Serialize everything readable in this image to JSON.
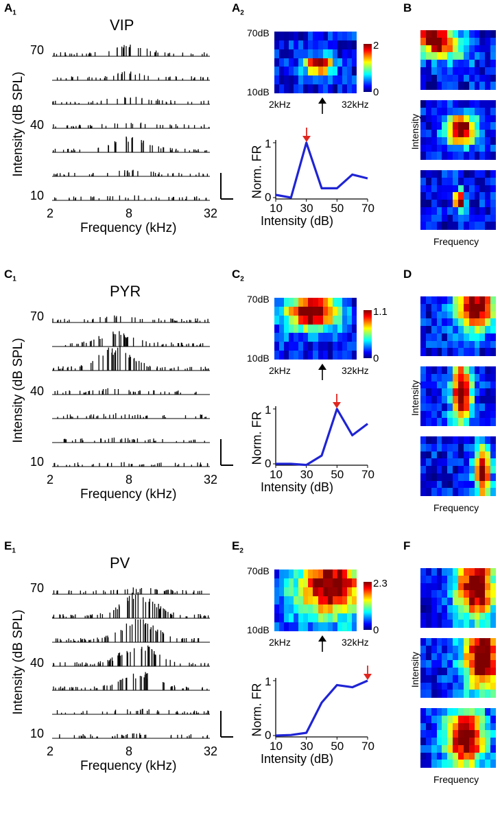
{
  "colors": {
    "line": "#1f24d4",
    "red_arrow": "#e0251f",
    "black_arrow": "#000000"
  },
  "rows": [
    {
      "key": "A",
      "panel1": "A",
      "panel1_sub": "1",
      "panel2": "A",
      "panel2_sub": "2",
      "panel3": "B",
      "title": "VIP",
      "ylabel": "Intensity (dB SPL)",
      "xlabel": "Frequency (kHz)",
      "yticks": [
        "70",
        "40",
        "10"
      ],
      "xticks": [
        "2",
        "8",
        "32"
      ],
      "hm_top": "70dB",
      "hm_bot": "10dB",
      "hm_left": "2kHz",
      "hm_right": "32kHz",
      "cb_max": "2",
      "cb_min": "0",
      "fr_ylabel": "Norm. FR",
      "fr_xlabel": "Intensity (dB)",
      "fr_xticks": [
        "10",
        "30",
        "50",
        "70"
      ],
      "fr_yticks": [
        "1",
        "0"
      ],
      "side_ylabel": "Intensity",
      "side_xlabel": "Frequency"
    },
    {
      "key": "C",
      "panel1": "C",
      "panel1_sub": "1",
      "panel2": "C",
      "panel2_sub": "2",
      "panel3": "D",
      "title": "PYR",
      "ylabel": "Intensity (dB SPL)",
      "xlabel": "Frequency (kHz)",
      "yticks": [
        "70",
        "40",
        "10"
      ],
      "xticks": [
        "2",
        "8",
        "32"
      ],
      "hm_top": "70dB",
      "hm_bot": "10dB",
      "hm_left": "2kHz",
      "hm_right": "32kHz",
      "cb_max": "1.1",
      "cb_min": "0",
      "fr_ylabel": "Norm. FR",
      "fr_xlabel": "Intensity (dB)",
      "fr_xticks": [
        "10",
        "30",
        "50",
        "70"
      ],
      "fr_yticks": [
        "1",
        "0"
      ],
      "side_ylabel": "Intensity",
      "side_xlabel": "Frequency"
    },
    {
      "key": "E",
      "panel1": "E",
      "panel1_sub": "1",
      "panel2": "E",
      "panel2_sub": "2",
      "panel3": "F",
      "title": "PV",
      "ylabel": "Intensity (dB SPL)",
      "xlabel": "Frequency (kHz)",
      "yticks": [
        "70",
        "40",
        "10"
      ],
      "xticks": [
        "2",
        "8",
        "32"
      ],
      "hm_top": "70dB",
      "hm_bot": "10dB",
      "hm_left": "2kHz",
      "hm_right": "32kHz",
      "cb_max": "2.3",
      "cb_min": "0",
      "fr_ylabel": "Norm. FR",
      "fr_xlabel": "Intensity (dB)",
      "fr_xticks": [
        "10",
        "30",
        "50",
        "70"
      ],
      "fr_yticks": [
        "1",
        "0"
      ],
      "side_ylabel": "Intensity",
      "side_xlabel": "Frequency"
    }
  ],
  "chart_data": [
    {
      "type": "line",
      "panel": "A2",
      "x": [
        10,
        20,
        30,
        40,
        50,
        60,
        70
      ],
      "y": [
        0.05,
        0,
        1,
        0.17,
        0.17,
        0.42,
        0.35
      ],
      "xlabel": "Intensity (dB)",
      "ylabel": "Norm. FR",
      "ylim": [
        0,
        1
      ],
      "xlim": [
        10,
        70
      ],
      "peak_x": 30
    },
    {
      "type": "line",
      "panel": "C2",
      "x": [
        10,
        20,
        30,
        40,
        50,
        60,
        70
      ],
      "y": [
        0,
        0,
        -0.02,
        0.15,
        1,
        0.52,
        0.73
      ],
      "xlabel": "Intensity (dB)",
      "ylabel": "Norm. FR",
      "ylim": [
        0,
        1
      ],
      "xlim": [
        10,
        70
      ],
      "peak_x": 50
    },
    {
      "type": "line",
      "panel": "E2",
      "x": [
        10,
        20,
        30,
        40,
        50,
        60,
        70
      ],
      "y": [
        0,
        0.01,
        0.05,
        0.6,
        0.92,
        0.88,
        1
      ],
      "xlabel": "Intensity (dB)",
      "ylabel": "Norm. FR",
      "ylim": [
        0,
        1
      ],
      "xlim": [
        10,
        70
      ],
      "peak_x": 70
    }
  ]
}
